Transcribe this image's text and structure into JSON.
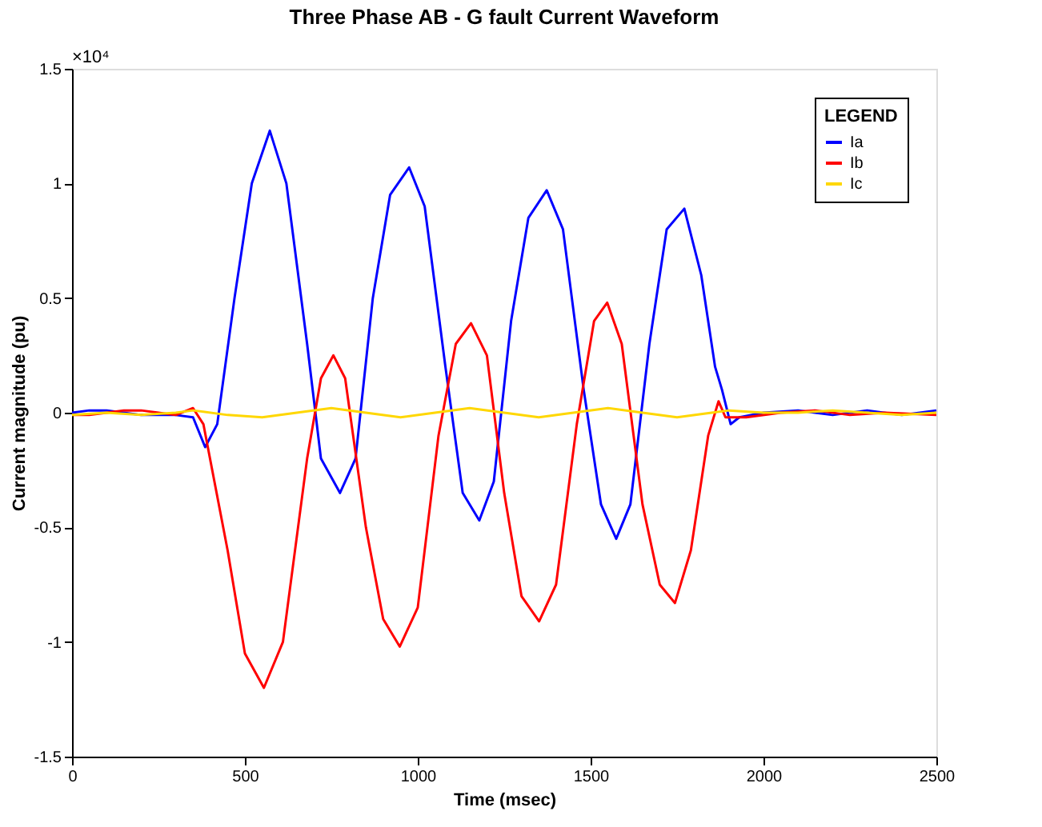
{
  "chart_data": {
    "type": "line",
    "title": "Three Phase AB - G fault Current Waveform",
    "xlabel": "Time (msec)",
    "ylabel": "Current magnitude (pu)",
    "annotations": [
      "×10⁴"
    ],
    "legend_title": "LEGEND",
    "legend": "top right",
    "grid": false,
    "marker": "none",
    "line_style": "solid",
    "xlim": [
      0,
      2500
    ],
    "xticks": [
      0,
      500,
      1000,
      1500,
      2000,
      2500
    ],
    "ylim": [
      -1.5,
      1.5
    ],
    "yticks": [
      -1.5,
      -1,
      -0.5,
      0,
      0.5,
      1,
      1.5
    ],
    "series": [
      {
        "name": "Ia",
        "color": "#0000ff",
        "x": [
          0,
          50,
          100,
          150,
          200,
          250,
          300,
          350,
          385,
          420,
          470,
          520,
          572,
          620,
          680,
          720,
          775,
          820,
          870,
          920,
          975,
          1020,
          1080,
          1130,
          1178,
          1220,
          1270,
          1320,
          1373,
          1420,
          1480,
          1530,
          1574,
          1615,
          1670,
          1720,
          1771,
          1820,
          1860,
          1880,
          1905,
          1930,
          2000,
          2100,
          2200,
          2300,
          2400,
          2500
        ],
        "values": [
          0,
          0.01,
          0.01,
          0,
          -0.01,
          -0.01,
          -0.01,
          -0.02,
          -0.15,
          -0.05,
          0.5,
          1.0,
          1.23,
          1.0,
          0.3,
          -0.2,
          -0.35,
          -0.2,
          0.5,
          0.95,
          1.07,
          0.9,
          0.2,
          -0.35,
          -0.47,
          -0.3,
          0.4,
          0.85,
          0.97,
          0.8,
          0.1,
          -0.4,
          -0.55,
          -0.4,
          0.3,
          0.8,
          0.89,
          0.6,
          0.2,
          0.1,
          -0.05,
          -0.02,
          0,
          0.01,
          -0.01,
          0.01,
          -0.01,
          0.01
        ]
      },
      {
        "name": "Ib",
        "color": "#ff0000",
        "x": [
          0,
          50,
          100,
          150,
          200,
          250,
          300,
          350,
          380,
          450,
          500,
          555,
          610,
          680,
          720,
          756,
          790,
          850,
          900,
          948,
          1000,
          1060,
          1110,
          1154,
          1200,
          1250,
          1300,
          1351,
          1400,
          1460,
          1510,
          1548,
          1590,
          1650,
          1700,
          1744,
          1790,
          1840,
          1870,
          1890,
          1950,
          2050,
          2150,
          2250,
          2350,
          2500
        ],
        "values": [
          -0.01,
          -0.01,
          0,
          0.01,
          0.01,
          0,
          -0.01,
          0.02,
          -0.05,
          -0.6,
          -1.05,
          -1.2,
          -1.0,
          -0.2,
          0.15,
          0.25,
          0.15,
          -0.5,
          -0.9,
          -1.02,
          -0.85,
          -0.1,
          0.3,
          0.39,
          0.25,
          -0.35,
          -0.8,
          -0.91,
          -0.75,
          -0.05,
          0.4,
          0.48,
          0.3,
          -0.4,
          -0.75,
          -0.83,
          -0.6,
          -0.1,
          0.05,
          -0.02,
          -0.02,
          0,
          0.01,
          -0.01,
          0,
          -0.01
        ]
      },
      {
        "name": "Ic",
        "color": "#ffd700",
        "x": [
          0,
          100,
          200,
          300,
          350,
          450,
          550,
          650,
          750,
          850,
          950,
          1050,
          1150,
          1250,
          1350,
          1450,
          1550,
          1650,
          1750,
          1850,
          1900,
          2000,
          2100,
          2200,
          2300,
          2400,
          2500
        ],
        "values": [
          -0.01,
          0,
          -0.01,
          0,
          0.01,
          -0.01,
          -0.02,
          0,
          0.02,
          0,
          -0.02,
          0,
          0.02,
          0,
          -0.02,
          0,
          0.02,
          0,
          -0.02,
          0,
          0.01,
          0,
          0,
          0.01,
          0,
          -0.01,
          0
        ]
      }
    ]
  }
}
